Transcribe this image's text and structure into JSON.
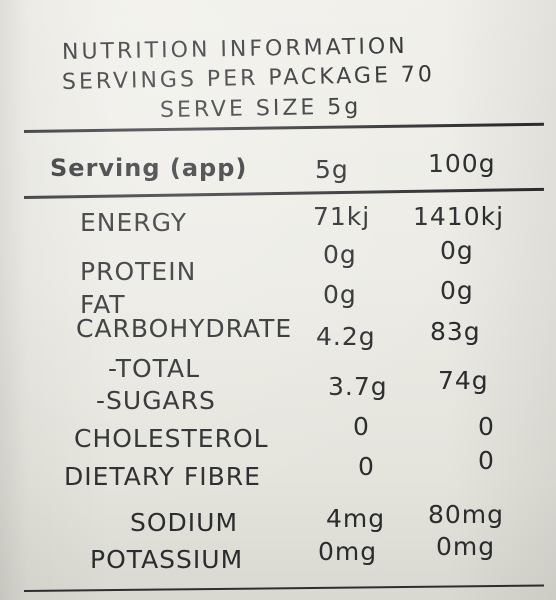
{
  "header": {
    "title": "NUTRITION INFORMATION",
    "servings": "SERVINGS PER PACKAGE 70",
    "serve_size": "SERVE SIZE 5g"
  },
  "columns": {
    "label": "Serving (app)",
    "col1": "5g",
    "col2": "100g"
  },
  "rows": {
    "energy": {
      "name": "ENERGY",
      "v1": "71kj",
      "v2": "1410kj"
    },
    "protein": {
      "name": "PROTEIN",
      "v1": "0g",
      "v2": "0g"
    },
    "fat": {
      "name": "FAT",
      "v1": "0g",
      "v2": "0g"
    },
    "carbs": {
      "name": "CARBOHYDRATE",
      "v1": "4.2g",
      "v2": "83g"
    },
    "total": {
      "name": "-TOTAL"
    },
    "sugars": {
      "name": "-SUGARS",
      "v1": "3.7g",
      "v2": "74g"
    },
    "cholesterol": {
      "name": "CHOLESTEROL",
      "v1": "0",
      "v2": "0"
    },
    "fibre": {
      "name": "DIETARY FIBRE",
      "v1": "0",
      "v2": "0"
    },
    "sodium": {
      "name": "SODIUM",
      "v1": "4mg",
      "v2": "80mg"
    },
    "potassium": {
      "name": "POTASSIUM",
      "v1": "0mg",
      "v2": "0mg"
    }
  }
}
